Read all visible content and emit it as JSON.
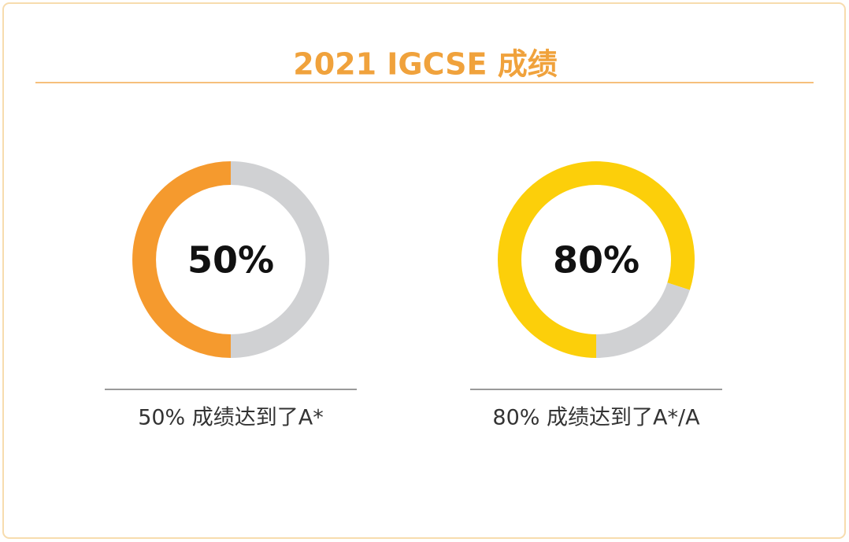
{
  "title": "2021 IGCSE 成绩",
  "chart_data": [
    {
      "type": "donut",
      "values": [
        50,
        50
      ],
      "colors": [
        "#f59a2e",
        "#d0d1d3"
      ],
      "value_labels": [
        "50%",
        null
      ],
      "caption": "50% 成绩达到了A*"
    },
    {
      "type": "donut",
      "values": [
        80,
        20
      ],
      "colors": [
        "#fccf0a",
        "#d0d1d3"
      ],
      "value_labels": [
        "80%",
        null
      ],
      "caption": "80% 成绩达到了A*/A"
    }
  ]
}
